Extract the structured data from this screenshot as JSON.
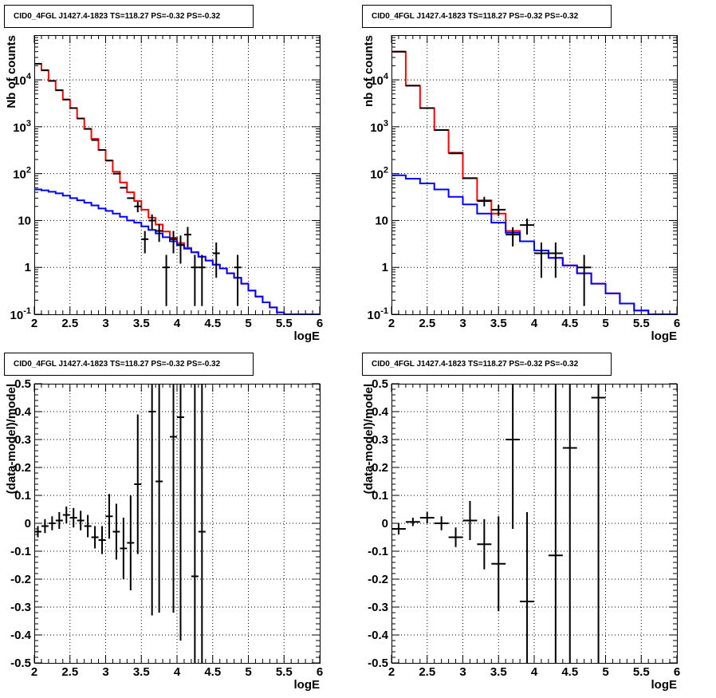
{
  "chart_data": [
    {
      "type": "line",
      "title": "CID0_4FGL J1427.4-1823 TS=118.27 PS=-0.32 PS=-0.32",
      "xlabel": "logE",
      "ylabel": "Nb of counts",
      "xlim": [
        2,
        6
      ],
      "ylim": [
        0.1,
        90000
      ],
      "ylog": true,
      "grid": true,
      "xticks": [
        "2",
        "2.5",
        "3",
        "3.5",
        "4",
        "4.5",
        "5",
        "5.5",
        "6"
      ],
      "yticks": [
        {
          "v": 0.1,
          "t": "10^-1"
        },
        {
          "v": 1,
          "t": "1"
        },
        {
          "v": 10,
          "t": "10"
        },
        {
          "v": 100,
          "t": "10^2"
        },
        {
          "v": 1000,
          "t": "10^3"
        },
        {
          "v": 10000,
          "t": "10^4"
        }
      ],
      "bin_edges": [
        2.0,
        2.1,
        2.2,
        2.3,
        2.4,
        2.5,
        2.6,
        2.7,
        2.8,
        2.9,
        3.0,
        3.1,
        3.2,
        3.3,
        3.4,
        3.5,
        3.6,
        3.7,
        3.8,
        3.9,
        4.0,
        4.1,
        4.2,
        4.3,
        4.4,
        4.5,
        4.6,
        4.7,
        4.8,
        4.9,
        5.0,
        5.1,
        5.2,
        5.3,
        5.4,
        5.5,
        5.6,
        5.7,
        5.8,
        5.9,
        6.0
      ],
      "series": [
        {
          "name": "",
          "kind": "hist",
          "color": "#ff0000",
          "values": [
            22000,
            16000,
            9500,
            6000,
            3800,
            2500,
            1500,
            900,
            550,
            320,
            190,
            110,
            65,
            40,
            26,
            17,
            11.5,
            8.2,
            5.8,
            4.3,
            3.3,
            2.6,
            2.1,
            1.7,
            1.4,
            1.15,
            0.95,
            0.75,
            0.6,
            0.45,
            0.32,
            0.24,
            0.18,
            0.14,
            0.11,
            0.1,
            0.1,
            0.1,
            0.1,
            0.1
          ]
        },
        {
          "name": "",
          "kind": "hist",
          "color": "#0000ff",
          "values": [
            46,
            44,
            41,
            38,
            34,
            30,
            27,
            24,
            21,
            18,
            16,
            14,
            12,
            10,
            9,
            7.5,
            6.3,
            5.3,
            4.4,
            3.6,
            3.0,
            2.5,
            2.1,
            1.7,
            1.4,
            1.15,
            0.95,
            0.75,
            0.6,
            0.45,
            0.32,
            0.24,
            0.18,
            0.14,
            0.11,
            0.1,
            0.1,
            0.1,
            0.1,
            0.1
          ]
        },
        {
          "name": "",
          "kind": "points",
          "color": "#000000",
          "points": [
            [
              2.05,
              22000,
              0
            ],
            [
              2.15,
              16000,
              0
            ],
            [
              2.25,
              9500,
              0
            ],
            [
              2.35,
              6000,
              0
            ],
            [
              2.45,
              3800,
              0
            ],
            [
              2.55,
              2500,
              0
            ],
            [
              2.65,
              1500,
              0
            ],
            [
              2.75,
              900,
              0
            ],
            [
              2.85,
              520,
              0
            ],
            [
              2.95,
              320,
              0
            ],
            [
              3.05,
              190,
              0
            ],
            [
              3.15,
              100,
              0
            ],
            [
              3.25,
              50,
              0
            ],
            [
              3.35,
              30,
              0
            ],
            [
              3.45,
              20,
              5
            ],
            [
              3.55,
              4,
              2
            ],
            [
              3.65,
              10,
              3.5
            ],
            [
              3.75,
              6,
              2.5
            ],
            [
              3.85,
              1,
              0.85
            ],
            [
              3.95,
              4,
              2
            ],
            [
              4.05,
              3,
              1.8
            ],
            [
              4.15,
              5,
              2.3
            ],
            [
              4.25,
              1,
              0.85
            ],
            [
              4.35,
              1,
              0.85
            ],
            [
              4.55,
              2,
              1.4
            ],
            [
              4.85,
              1,
              0.85
            ]
          ]
        }
      ]
    },
    {
      "type": "line",
      "title": "CID0_4FGL J1427.4-1823 TS=118.27 PS=-0.32 PS=-0.32",
      "xlabel": "logE",
      "ylabel": "nb of counts",
      "xlim": [
        2,
        6
      ],
      "ylim": [
        0.1,
        90000
      ],
      "ylog": true,
      "grid": true,
      "xticks": [
        "2",
        "2.5",
        "3",
        "3.5",
        "4",
        "4.5",
        "5",
        "5.5",
        "6"
      ],
      "yticks": [
        {
          "v": 0.1,
          "t": "10^-1"
        },
        {
          "v": 1,
          "t": "1"
        },
        {
          "v": 10,
          "t": "10"
        },
        {
          "v": 100,
          "t": "10^2"
        },
        {
          "v": 1000,
          "t": "10^3"
        },
        {
          "v": 10000,
          "t": "10^4"
        }
      ],
      "bin_edges": [
        2.0,
        2.2,
        2.4,
        2.6,
        2.8,
        3.0,
        3.2,
        3.4,
        3.6,
        3.8,
        4.0,
        4.2,
        4.4,
        4.6,
        4.8,
        5.0,
        5.2,
        5.4,
        5.6,
        5.8,
        6.0
      ],
      "series": [
        {
          "name": "",
          "kind": "hist",
          "color": "#ff0000",
          "values": [
            40000,
            7500,
            2500,
            850,
            280,
            80,
            27,
            14,
            6,
            3.6,
            2.3,
            1.6,
            1.1,
            0.75,
            0.45,
            0.28,
            0.17,
            0.12,
            0.1,
            0.1
          ]
        },
        {
          "name": "",
          "kind": "hist",
          "color": "#0000ff",
          "values": [
            92,
            78,
            62,
            46,
            32,
            22,
            14,
            9,
            5.5,
            3.6,
            2.3,
            1.6,
            1.1,
            0.75,
            0.45,
            0.28,
            0.17,
            0.12,
            0.1,
            0.1
          ]
        },
        {
          "name": "",
          "kind": "points",
          "color": "#000000",
          "points": [
            [
              2.1,
              40000,
              0
            ],
            [
              2.3,
              7500,
              0
            ],
            [
              2.5,
              2500,
              0
            ],
            [
              2.7,
              850,
              0
            ],
            [
              2.9,
              270,
              0
            ],
            [
              3.1,
              80,
              0
            ],
            [
              3.3,
              26,
              6
            ],
            [
              3.5,
              17,
              4.5
            ],
            [
              3.7,
              5,
              2.2
            ],
            [
              3.9,
              8,
              3
            ],
            [
              4.1,
              2,
              1.4
            ],
            [
              4.3,
              2,
              1.4
            ],
            [
              4.7,
              1,
              0.85
            ]
          ]
        }
      ]
    },
    {
      "type": "scatter",
      "title": "CID0_4FGL J1427.4-1823 TS=118.27 PS=-0.32 PS=-0.32",
      "xlabel": "logE",
      "ylabel": "(data-model)/model",
      "xlim": [
        2,
        6
      ],
      "ylim": [
        -0.5,
        0.5
      ],
      "ylog": false,
      "grid": true,
      "xticks": [
        "2",
        "2.5",
        "3",
        "3.5",
        "4",
        "4.5",
        "5",
        "5.5",
        "6"
      ],
      "yticks": [
        {
          "v": -0.5,
          "t": "-0.5"
        },
        {
          "v": -0.4,
          "t": "-0.4"
        },
        {
          "v": -0.3,
          "t": "-0.3"
        },
        {
          "v": -0.2,
          "t": "-0.2"
        },
        {
          "v": -0.1,
          "t": "-0.1"
        },
        {
          "v": 0,
          "t": "0"
        },
        {
          "v": 0.1,
          "t": "0.1"
        },
        {
          "v": 0.2,
          "t": "0.2"
        },
        {
          "v": 0.3,
          "t": "0.3"
        },
        {
          "v": 0.4,
          "t": "0.4"
        },
        {
          "v": 0.5,
          "t": "0.5"
        }
      ],
      "series": [
        {
          "name": "",
          "kind": "points",
          "color": "#000000",
          "halfwidth": 0.05,
          "points": [
            [
              2.05,
              -0.03,
              0.02
            ],
            [
              2.15,
              -0.01,
              0.025
            ],
            [
              2.25,
              0.0,
              0.025
            ],
            [
              2.35,
              0.01,
              0.03
            ],
            [
              2.45,
              0.03,
              0.03
            ],
            [
              2.55,
              0.02,
              0.035
            ],
            [
              2.65,
              0.01,
              0.035
            ],
            [
              2.75,
              -0.01,
              0.04
            ],
            [
              2.85,
              -0.05,
              0.04
            ],
            [
              2.95,
              -0.06,
              0.05
            ],
            [
              3.05,
              0.025,
              0.08
            ],
            [
              3.15,
              -0.03,
              0.1
            ],
            [
              3.25,
              -0.09,
              0.11
            ],
            [
              3.35,
              -0.07,
              0.17
            ],
            [
              3.45,
              0.14,
              0.25
            ],
            [
              3.65,
              0.4,
              0.73
            ],
            [
              3.75,
              0.15,
              0.47
            ],
            [
              3.95,
              0.31,
              0.63
            ],
            [
              4.05,
              0.38,
              0.8
            ],
            [
              4.25,
              -0.19,
              0.81
            ],
            [
              4.35,
              -0.03,
              0.97
            ]
          ]
        }
      ]
    },
    {
      "type": "scatter",
      "title": "CID0_4FGL J1427.4-1823 TS=118.27 PS=-0.32 PS=-0.32",
      "xlabel": "logE",
      "ylabel": "(data-model)/model",
      "xlim": [
        2,
        6
      ],
      "ylim": [
        -0.5,
        0.5
      ],
      "ylog": false,
      "grid": true,
      "xticks": [
        "2",
        "2.5",
        "3",
        "3.5",
        "4",
        "4.5",
        "5",
        "5.5",
        "6"
      ],
      "yticks": [
        {
          "v": -0.5,
          "t": "-0.5"
        },
        {
          "v": -0.4,
          "t": "-0.4"
        },
        {
          "v": -0.3,
          "t": "-0.3"
        },
        {
          "v": -0.2,
          "t": "-0.2"
        },
        {
          "v": -0.1,
          "t": "-0.1"
        },
        {
          "v": 0,
          "t": "0"
        },
        {
          "v": 0.1,
          "t": "0.1"
        },
        {
          "v": 0.2,
          "t": "0.2"
        },
        {
          "v": 0.3,
          "t": "0.3"
        },
        {
          "v": 0.4,
          "t": "0.4"
        },
        {
          "v": 0.5,
          "t": "0.5"
        }
      ],
      "series": [
        {
          "name": "",
          "kind": "points",
          "color": "#000000",
          "halfwidth": 0.1,
          "points": [
            [
              2.1,
              -0.02,
              0.02
            ],
            [
              2.3,
              0.005,
              0.015
            ],
            [
              2.5,
              0.02,
              0.02
            ],
            [
              2.7,
              0.0,
              0.025
            ],
            [
              2.9,
              -0.05,
              0.035
            ],
            [
              3.1,
              0.01,
              0.07
            ],
            [
              3.3,
              -0.075,
              0.09
            ],
            [
              3.5,
              -0.145,
              0.17
            ],
            [
              3.7,
              0.3,
              0.32
            ],
            [
              3.9,
              -0.28,
              0.32
            ],
            [
              4.3,
              -0.115,
              0.85
            ],
            [
              4.5,
              0.27,
              0.9
            ],
            [
              4.9,
              0.45,
              1.0
            ]
          ]
        }
      ]
    }
  ]
}
